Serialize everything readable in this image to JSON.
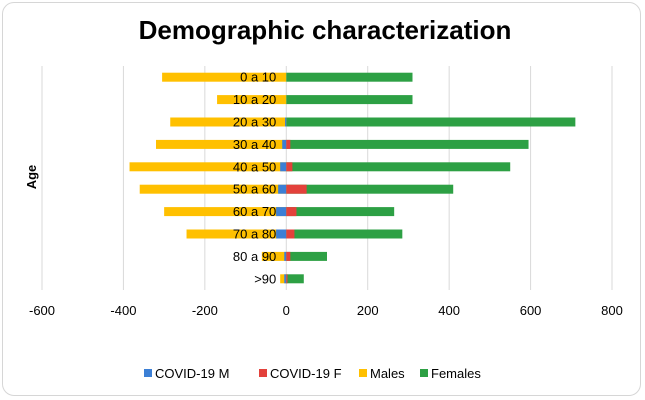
{
  "chart_data": {
    "type": "bar",
    "orientation": "horizontal",
    "stacking": "diverging",
    "title": "Demographic characterization",
    "xlabel": "",
    "ylabel": "Age",
    "xlim": [
      -600,
      800
    ],
    "xticks": [
      -600,
      -400,
      -200,
      0,
      200,
      400,
      600,
      800
    ],
    "xtick_labels": [
      "-600",
      "-400",
      "-200",
      "0",
      "200",
      "400",
      "600",
      "800"
    ],
    "grid": "vertical",
    "legend_position": "bottom",
    "categories": [
      "0 a 10",
      "10 a 20",
      "20 a 30",
      "30 a 40",
      "40 a 50",
      "50 a 60",
      "60 a 70",
      "70 a 80",
      "80 a 90",
      ">90"
    ],
    "series": [
      {
        "name": "COVID-19 M",
        "color": "#3c7fd5",
        "values": [
          0,
          0,
          -3,
          -10,
          -15,
          -20,
          -25,
          -25,
          -5,
          -5
        ]
      },
      {
        "name": "COVID-19 F",
        "color": "#e3413b",
        "values": [
          0,
          0,
          0,
          10,
          15,
          50,
          25,
          20,
          10,
          3
        ]
      },
      {
        "name": "Males",
        "color": "#ffc000",
        "values": [
          -305,
          -170,
          -285,
          -320,
          -385,
          -360,
          -300,
          -245,
          -60,
          -15
        ]
      },
      {
        "name": "Females",
        "color": "#2da044",
        "values": [
          310,
          310,
          710,
          595,
          550,
          410,
          265,
          285,
          100,
          43
        ]
      }
    ]
  }
}
